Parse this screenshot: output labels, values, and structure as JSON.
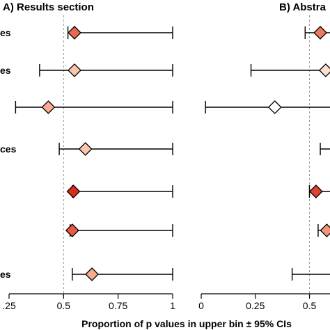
{
  "chart_data": [
    {
      "type": "forest",
      "title": "A) Results section",
      "xlabel": "Proportion of p values in upper bin ± 95% CIs",
      "xlim": [
        0.25,
        1
      ],
      "x_ticks": [
        0.25,
        0.5,
        0.75,
        1
      ],
      "x_tick_labels": [
        ".25",
        "0.5",
        "0.75",
        "1"
      ],
      "reference_line": 0.5,
      "row_labels": [
        "es",
        "es",
        "",
        "ces",
        "",
        "",
        "es"
      ],
      "points": [
        {
          "estimate": 0.55,
          "ci_low": 0.52,
          "ci_high": 1.0,
          "color": "#e8694f"
        },
        {
          "estimate": 0.55,
          "ci_low": 0.39,
          "ci_high": 1.0,
          "color": "#fbc6b0"
        },
        {
          "estimate": 0.43,
          "ci_low": 0.28,
          "ci_high": 1.0,
          "color": "#f9ab93"
        },
        {
          "estimate": 0.6,
          "ci_low": 0.48,
          "ci_high": 1.0,
          "color": "#fbc6b0"
        },
        {
          "estimate": 0.545,
          "ci_low": 0.54,
          "ci_high": 1.0,
          "color": "#dc2a1f"
        },
        {
          "estimate": 0.54,
          "ci_low": 0.53,
          "ci_high": 1.0,
          "color": "#ea5a43"
        },
        {
          "estimate": 0.63,
          "ci_low": 0.54,
          "ci_high": 1.0,
          "color": "#f8ab90"
        }
      ]
    },
    {
      "type": "forest",
      "title": "B) Abstra",
      "xlim": [
        0,
        1
      ],
      "x_ticks": [
        0,
        0.25,
        0.5
      ],
      "x_tick_labels": [
        "0",
        "0.25",
        "0.5"
      ],
      "reference_line": 0.5,
      "points": [
        {
          "estimate": 0.55,
          "ci_low": 0.48,
          "ci_high": 1.0,
          "color": "#ec7a5c"
        },
        {
          "estimate": 0.575,
          "ci_low": 0.23,
          "ci_high": 1.0,
          "color": "#fde0d2"
        },
        {
          "estimate": 0.34,
          "ci_low": 0.02,
          "ci_high": 1.0,
          "color": "#ffffff"
        },
        {
          "estimate": null,
          "ci_low": 0.55,
          "ci_high": 1.0,
          "color": ""
        },
        {
          "estimate": 0.53,
          "ci_low": 0.5,
          "ci_high": 1.0,
          "color": "#e0442f"
        },
        {
          "estimate": 0.58,
          "ci_low": 0.54,
          "ci_high": 1.0,
          "color": "#f29679"
        },
        {
          "estimate": null,
          "ci_low": 0.42,
          "ci_high": 1.0,
          "color": ""
        }
      ]
    }
  ]
}
